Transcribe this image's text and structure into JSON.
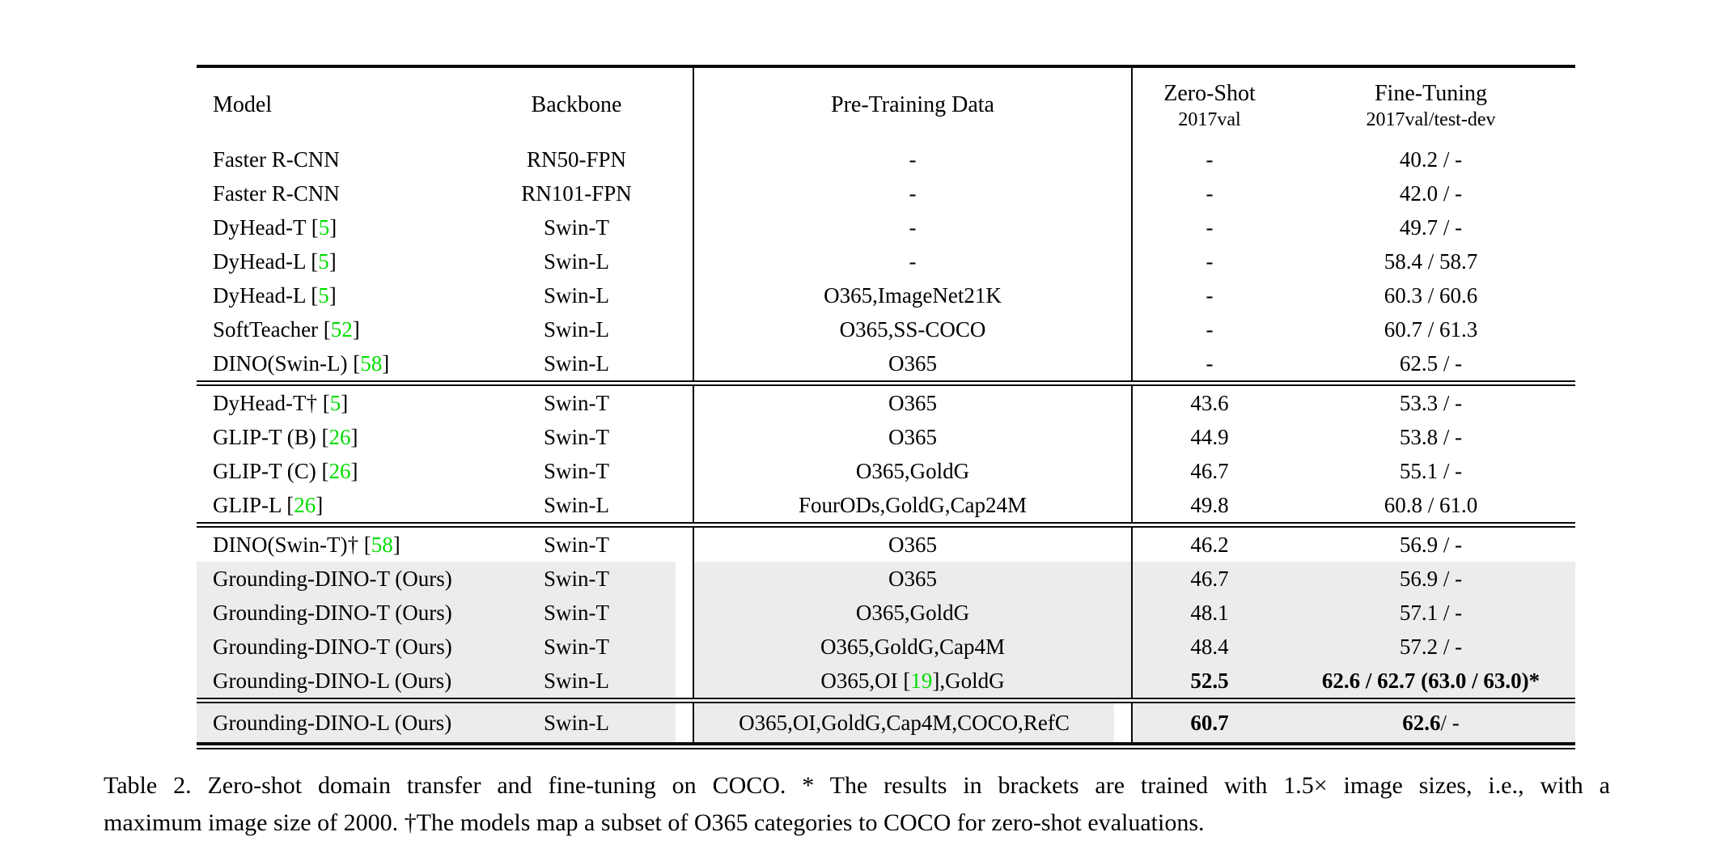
{
  "colors": {
    "citation_green": "#00dd00",
    "row_highlight": "#ececec",
    "rule_black": "#0a0a0a"
  },
  "table": {
    "columns": [
      {
        "label": "Model"
      },
      {
        "label": "Backbone"
      },
      {
        "label": "Pre-Training Data"
      },
      {
        "label": "Zero-Shot",
        "sublabel": "2017val"
      },
      {
        "label": "Fine-Tuning",
        "sublabel": "2017val/test-dev"
      }
    ],
    "groups": [
      {
        "rows": [
          {
            "model": "Faster R-CNN",
            "backbone": "RN50-FPN",
            "pretrain": "-",
            "zero_shot": "-",
            "fine_tune": "40.2 / -",
            "highlight": false
          },
          {
            "model": "Faster R-CNN",
            "backbone": "RN101-FPN",
            "pretrain": "-",
            "zero_shot": "-",
            "fine_tune": "42.0 / -",
            "highlight": false
          },
          {
            "model": "DyHead-T [5]",
            "backbone": "Swin-T",
            "pretrain": "-",
            "zero_shot": "-",
            "fine_tune": "49.7 / -",
            "highlight": false
          },
          {
            "model": "DyHead-L [5]",
            "backbone": "Swin-L",
            "pretrain": "-",
            "zero_shot": "-",
            "fine_tune": "58.4 / 58.7",
            "highlight": false
          },
          {
            "model": "DyHead-L [5]",
            "backbone": "Swin-L",
            "pretrain": "O365,ImageNet21K",
            "zero_shot": "-",
            "fine_tune": "60.3 / 60.6",
            "highlight": false
          },
          {
            "model": "SoftTeacher [52]",
            "backbone": "Swin-L",
            "pretrain": "O365,SS-COCO",
            "zero_shot": "-",
            "fine_tune": "60.7 / 61.3",
            "highlight": false
          },
          {
            "model": "DINO(Swin-L) [58]",
            "backbone": "Swin-L",
            "pretrain": "O365",
            "zero_shot": "-",
            "fine_tune": "62.5 / -",
            "highlight": false
          }
        ]
      },
      {
        "rows": [
          {
            "model": "DyHead-T† [5]",
            "backbone": "Swin-T",
            "pretrain": "O365",
            "zero_shot": "43.6",
            "fine_tune": "53.3 / -",
            "highlight": false
          },
          {
            "model": "GLIP-T (B) [26]",
            "backbone": "Swin-T",
            "pretrain": "O365",
            "zero_shot": "44.9",
            "fine_tune": "53.8 / -",
            "highlight": false
          },
          {
            "model": "GLIP-T (C) [26]",
            "backbone": "Swin-T",
            "pretrain": "O365,GoldG",
            "zero_shot": "46.7",
            "fine_tune": "55.1 / -",
            "highlight": false
          },
          {
            "model": "GLIP-L [26]",
            "backbone": "Swin-L",
            "pretrain": "FourODs,GoldG,Cap24M",
            "zero_shot": "49.8",
            "fine_tune": "60.8 / 61.0",
            "highlight": false
          }
        ]
      },
      {
        "rows": [
          {
            "model": "DINO(Swin-T)† [58]",
            "backbone": "Swin-T",
            "pretrain": "O365",
            "zero_shot": "46.2",
            "fine_tune": "56.9 / -",
            "highlight": false
          },
          {
            "model": "Grounding-DINO-T (Ours)",
            "backbone": "Swin-T",
            "pretrain": "O365",
            "zero_shot": "46.7",
            "fine_tune": "56.9 / -",
            "highlight": true
          },
          {
            "model": "Grounding-DINO-T (Ours)",
            "backbone": "Swin-T",
            "pretrain": "O365,GoldG",
            "zero_shot": "48.1",
            "fine_tune": "57.1 / -",
            "highlight": true
          },
          {
            "model": "Grounding-DINO-T (Ours)",
            "backbone": "Swin-T",
            "pretrain": "O365,GoldG,Cap4M",
            "zero_shot": "48.4",
            "fine_tune": "57.2 / -",
            "highlight": true
          },
          {
            "model": "Grounding-DINO-L (Ours)",
            "backbone": "Swin-L",
            "pretrain": "O365,OI [19],GoldG",
            "zero_shot": "52.5",
            "fine_tune": "62.6 / 62.7 (63.0 / 63.0)*",
            "highlight": true,
            "bold_zero_shot": true,
            "bold_fine_tune": true
          }
        ]
      },
      {
        "rows": [
          {
            "model": "Grounding-DINO-L (Ours)",
            "backbone": "Swin-L",
            "pretrain": "O365,OI,GoldG,Cap4M,COCO,RefC",
            "zero_shot": "60.7",
            "fine_tune": "62.6 / -",
            "highlight": true,
            "bold_zero_shot": true,
            "fine_tune_bold_prefix": "62.6"
          }
        ]
      }
    ]
  },
  "caption": {
    "line1": "Table 2.  Zero-shot domain transfer and fine-tuning on COCO. * The results in brackets are trained with 1.5× image sizes, i.e., with a",
    "line2": "maximum image size of 2000. †The models map a subset of O365 categories to COCO for zero-shot evaluations."
  }
}
